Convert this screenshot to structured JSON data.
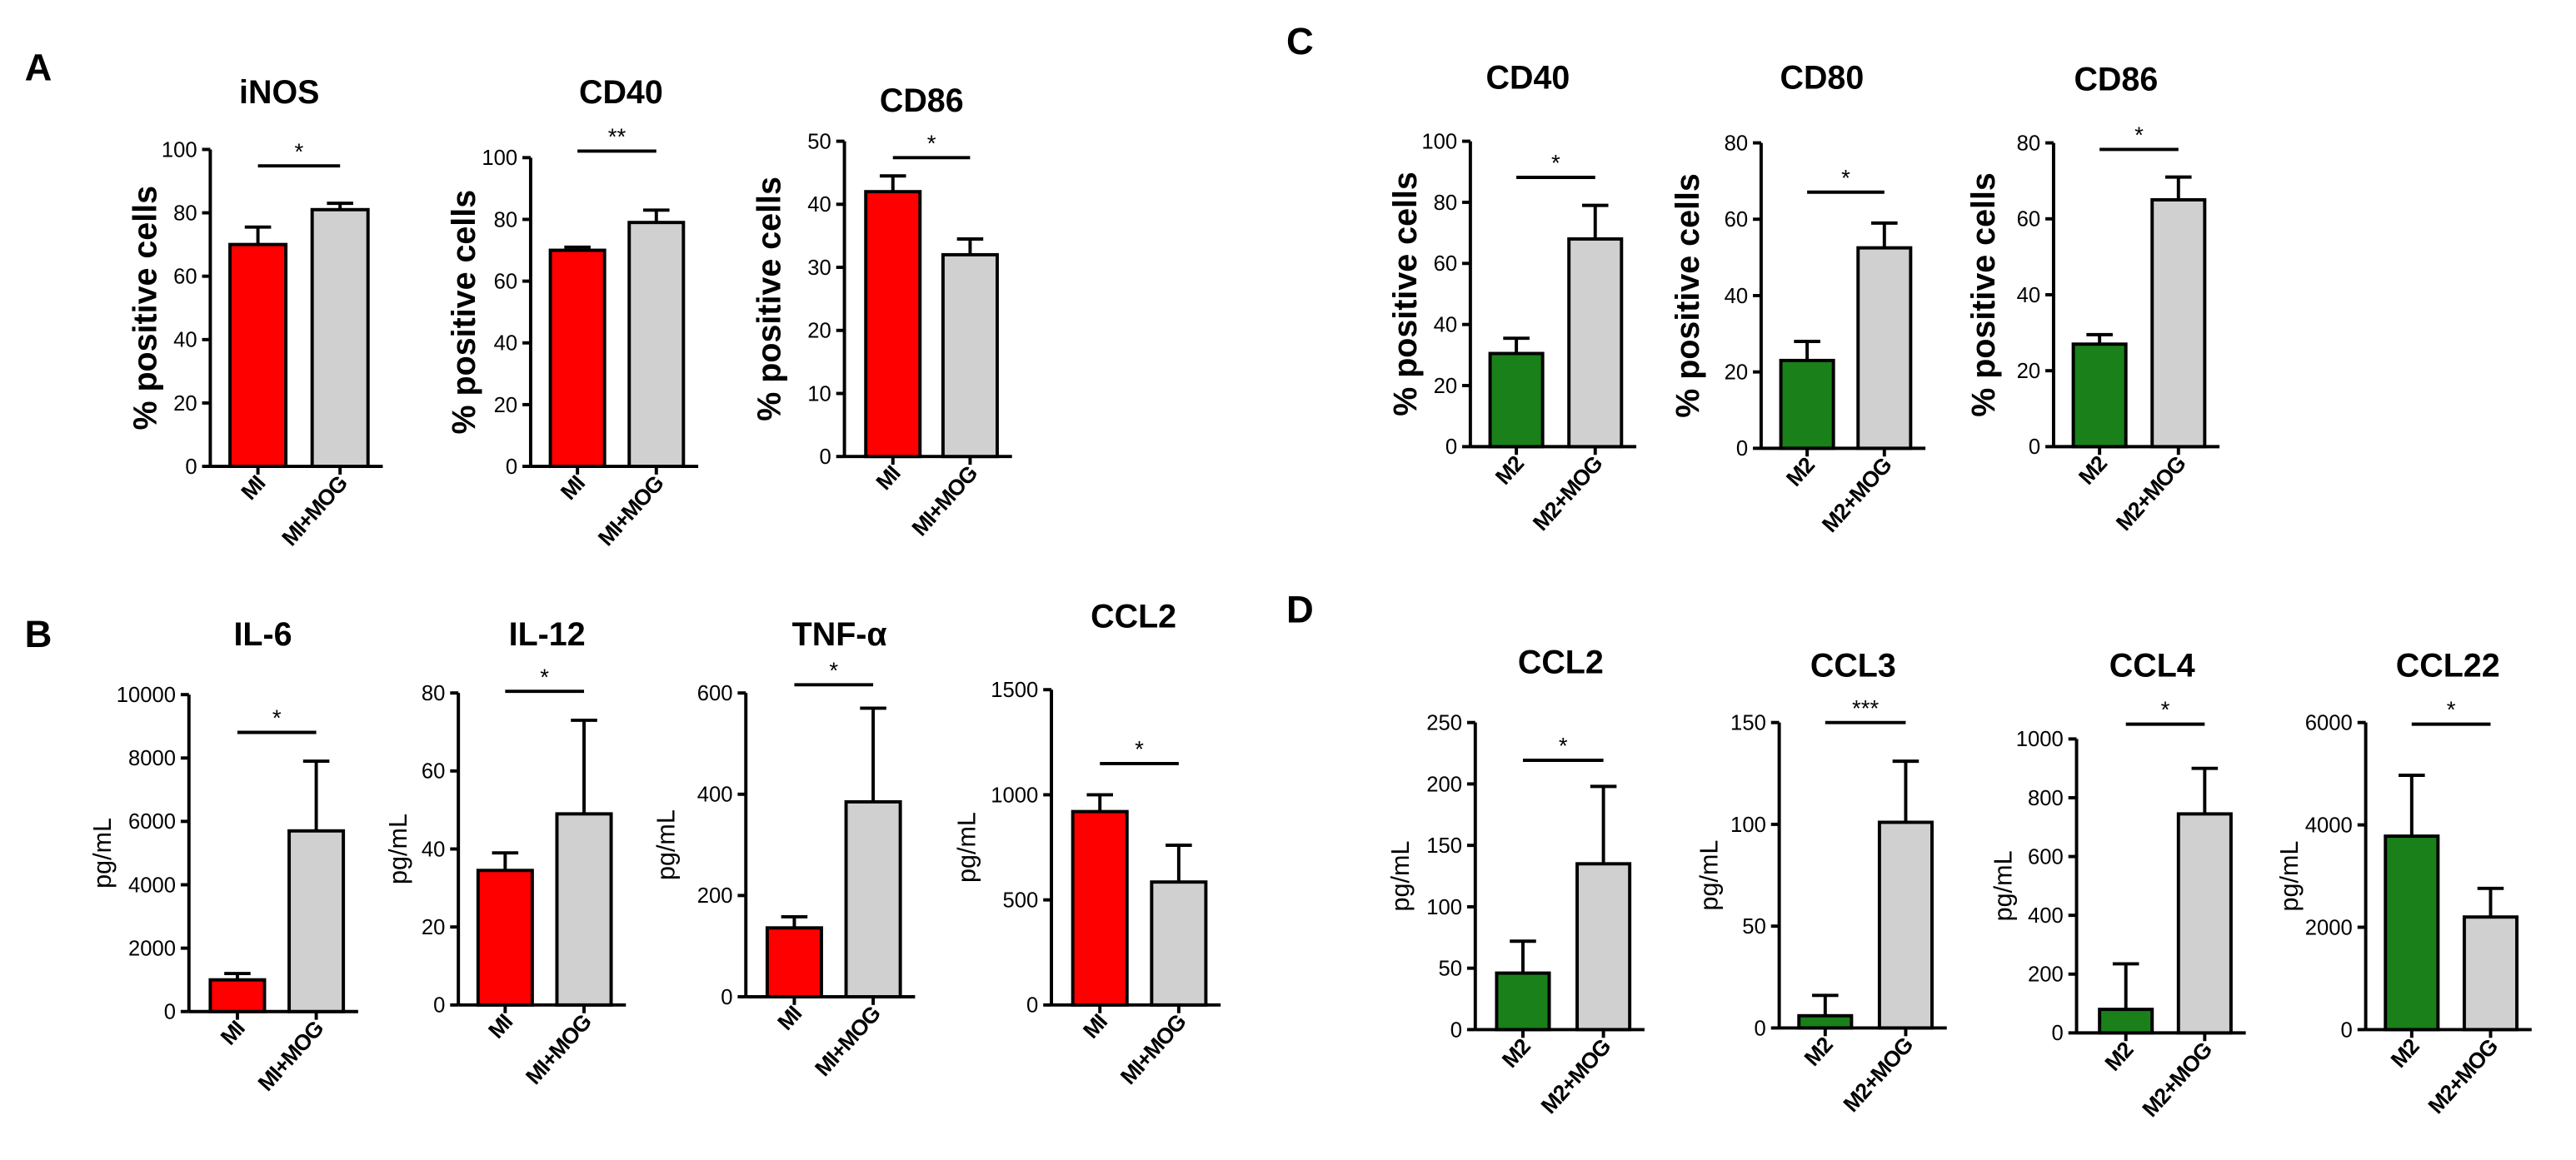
{
  "panel_labels": [
    "A",
    "B",
    "C",
    "D"
  ],
  "chart_data": [
    {
      "type": "bar",
      "title": "iNOS",
      "categories": [
        "MI",
        "MI+MOG"
      ],
      "values": [
        70,
        81
      ],
      "errors": [
        5.5,
        2
      ],
      "colors": [
        "#ff0000",
        "#d0d0d0"
      ],
      "ylabel": "% positive cells",
      "ylim": [
        0,
        100
      ],
      "yticks": [
        0,
        20,
        40,
        60,
        80,
        100
      ],
      "significance": "*"
    },
    {
      "type": "bar",
      "title": "CD40",
      "categories": [
        "MI",
        "MI+MOG"
      ],
      "values": [
        70,
        79
      ],
      "errors": [
        1,
        4
      ],
      "colors": [
        "#ff0000",
        "#d0d0d0"
      ],
      "ylabel": "% positive cells",
      "ylim": [
        0,
        100
      ],
      "yticks": [
        0,
        20,
        40,
        60,
        80,
        100
      ],
      "significance": "**"
    },
    {
      "type": "bar",
      "title": "CD86",
      "categories": [
        "MI",
        "MI+MOG"
      ],
      "values": [
        42,
        32
      ],
      "errors": [
        2.5,
        2.5
      ],
      "colors": [
        "#ff0000",
        "#d0d0d0"
      ],
      "ylabel": "% positive cells",
      "ylim": [
        0,
        50
      ],
      "yticks": [
        0,
        10,
        20,
        30,
        40,
        50
      ],
      "significance": "*"
    },
    {
      "type": "bar",
      "title": "IL-6",
      "categories": [
        "MI",
        "MI+MOG"
      ],
      "values": [
        1000,
        5700
      ],
      "errors": [
        200,
        2200
      ],
      "colors": [
        "#ff0000",
        "#d0d0d0"
      ],
      "ylabel": "pg/mL",
      "ylim": [
        0,
        10000
      ],
      "yticks": [
        0,
        2000,
        4000,
        6000,
        8000,
        10000
      ],
      "significance": "*"
    },
    {
      "type": "bar",
      "title": "IL-12",
      "categories": [
        "MI",
        "MI+MOG"
      ],
      "values": [
        34.5,
        49
      ],
      "errors": [
        4.5,
        24
      ],
      "colors": [
        "#ff0000",
        "#d0d0d0"
      ],
      "ylabel": "pg/mL",
      "ylim": [
        0,
        80
      ],
      "yticks": [
        0,
        20,
        40,
        60,
        80
      ],
      "significance": "*"
    },
    {
      "type": "bar",
      "title": "TNF-α",
      "categories": [
        "MI",
        "MI+MOG"
      ],
      "values": [
        136,
        385
      ],
      "errors": [
        22,
        185
      ],
      "colors": [
        "#ff0000",
        "#d0d0d0"
      ],
      "ylabel": "pg/mL",
      "ylim": [
        0,
        600
      ],
      "yticks": [
        0,
        200,
        400,
        600
      ],
      "significance": "*"
    },
    {
      "type": "bar",
      "title": "CCL2",
      "categories": [
        "MI",
        "MI+MOG"
      ],
      "values": [
        920,
        585
      ],
      "errors": [
        80,
        175
      ],
      "colors": [
        "#ff0000",
        "#d0d0d0"
      ],
      "ylabel": "pg/mL",
      "ylim": [
        0,
        1500
      ],
      "yticks": [
        0,
        500,
        1000,
        1500
      ],
      "significance": "*"
    },
    {
      "type": "bar",
      "title": "CD40",
      "categories": [
        "M2",
        "M2+MOG"
      ],
      "values": [
        30.5,
        68
      ],
      "errors": [
        5,
        11
      ],
      "colors": [
        "#19801a",
        "#d0d0d0"
      ],
      "ylabel": "% positive cells",
      "ylim": [
        0,
        100
      ],
      "yticks": [
        0,
        20,
        40,
        60,
        80,
        100
      ],
      "significance": "*"
    },
    {
      "type": "bar",
      "title": "CD80",
      "categories": [
        "M2",
        "M2+MOG"
      ],
      "values": [
        23,
        52.5
      ],
      "errors": [
        5,
        6.5
      ],
      "colors": [
        "#19801a",
        "#d0d0d0"
      ],
      "ylabel": "% positive cells",
      "ylim": [
        0,
        80
      ],
      "yticks": [
        0,
        20,
        40,
        60,
        80
      ],
      "significance": "*"
    },
    {
      "type": "bar",
      "title": "CD86",
      "categories": [
        "M2",
        "M2+MOG"
      ],
      "values": [
        27,
        65
      ],
      "errors": [
        2.5,
        6
      ],
      "colors": [
        "#19801a",
        "#d0d0d0"
      ],
      "ylabel": "% positive cells",
      "ylim": [
        0,
        80
      ],
      "yticks": [
        0,
        20,
        40,
        60,
        80
      ],
      "significance": "*"
    },
    {
      "type": "bar",
      "title": "CCL2",
      "categories": [
        "M2",
        "M2+MOG"
      ],
      "values": [
        46,
        135
      ],
      "errors": [
        26,
        63
      ],
      "colors": [
        "#19801a",
        "#d0d0d0"
      ],
      "ylabel": "pg/mL",
      "ylim": [
        0,
        250
      ],
      "yticks": [
        0,
        50,
        100,
        150,
        200,
        250
      ],
      "significance": "*"
    },
    {
      "type": "bar",
      "title": "CCL3",
      "categories": [
        "M2",
        "M2+MOG"
      ],
      "values": [
        6,
        101
      ],
      "errors": [
        10,
        30
      ],
      "colors": [
        "#19801a",
        "#d0d0d0"
      ],
      "ylabel": "pg/mL",
      "ylim": [
        0,
        150
      ],
      "yticks": [
        0,
        50,
        100,
        150
      ],
      "significance": "***"
    },
    {
      "type": "bar",
      "title": "CCL4",
      "categories": [
        "M2",
        "M2+MOG"
      ],
      "values": [
        80,
        745
      ],
      "errors": [
        155,
        155
      ],
      "colors": [
        "#19801a",
        "#d0d0d0"
      ],
      "ylabel": "pg/mL",
      "ylim": [
        0,
        1000
      ],
      "yticks": [
        0,
        200,
        400,
        600,
        800,
        1000
      ],
      "significance": "*"
    },
    {
      "type": "bar",
      "title": "CCL22",
      "categories": [
        "M2",
        "M2+MOG"
      ],
      "values": [
        3780,
        2200
      ],
      "errors": [
        1190,
        560
      ],
      "colors": [
        "#19801a",
        "#d0d0d0"
      ],
      "ylabel": "pg/mL",
      "ylim": [
        0,
        6000
      ],
      "yticks": [
        0,
        2000,
        4000,
        6000
      ],
      "significance": "*"
    }
  ]
}
